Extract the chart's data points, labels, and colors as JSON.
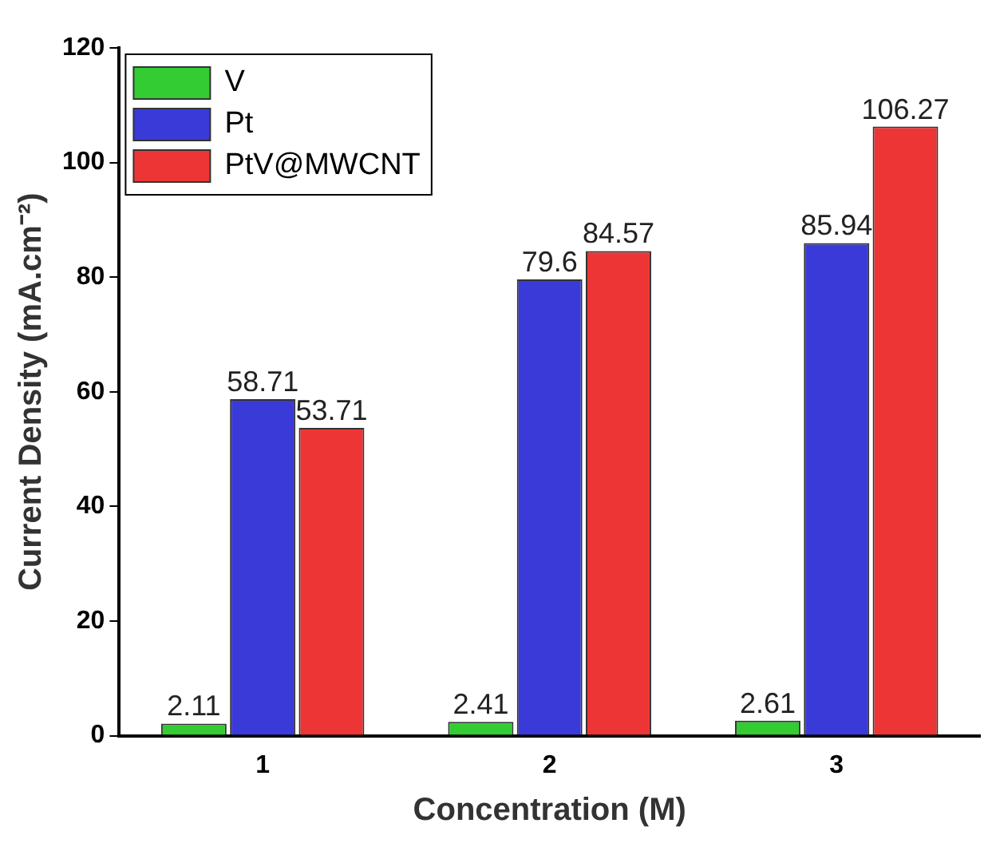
{
  "chart_data": {
    "type": "bar",
    "xlabel": "Concentration (M)",
    "ylabel": "Current Density (mA.cm⁻²)",
    "categories": [
      "1",
      "2",
      "3"
    ],
    "series": [
      {
        "name": "V",
        "color": "#33cc33",
        "values": [
          2.11,
          2.41,
          2.61
        ]
      },
      {
        "name": "Pt",
        "color": "#3a3ad8",
        "values": [
          58.71,
          79.6,
          85.94
        ]
      },
      {
        "name": "PtV@MWCNT",
        "color": "#ee3535",
        "values": [
          53.71,
          84.57,
          106.27
        ]
      }
    ],
    "ylim": [
      0,
      120
    ],
    "yticks": [
      0,
      20,
      40,
      60,
      80,
      100,
      120
    ],
    "grid": false,
    "legend": "top left",
    "data_labels": true
  }
}
